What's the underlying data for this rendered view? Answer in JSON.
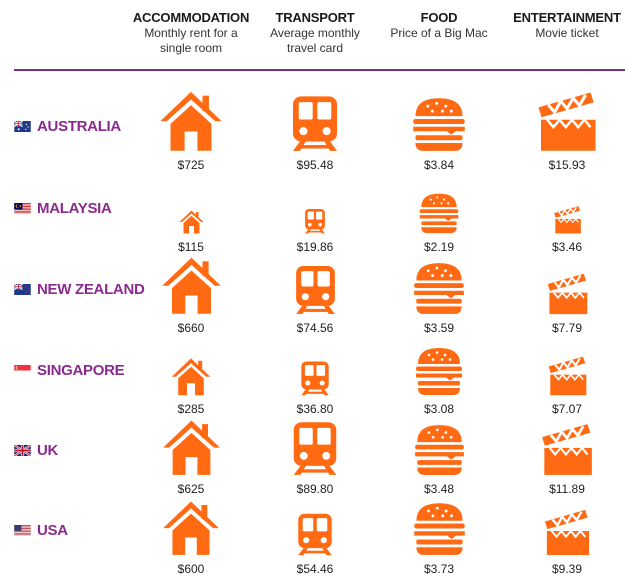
{
  "columns": [
    {
      "title": "ACCOMMODATION",
      "subtitle_lines": [
        "Monthly rent for a",
        "single room"
      ]
    },
    {
      "title": "TRANSPORT",
      "subtitle_lines": [
        "Average monthly",
        "travel card"
      ]
    },
    {
      "title": "FOOD",
      "subtitle_lines": [
        "Price of a Big Mac"
      ]
    },
    {
      "title": "ENTERTAINMENT",
      "subtitle_lines": [
        "Movie ticket"
      ]
    }
  ],
  "colors": {
    "icon": "#ff6a13",
    "country": "#8b2a8e",
    "divider": "#7b2f8a"
  },
  "chart_data": {
    "type": "table",
    "categories": [
      "ACCOMMODATION",
      "TRANSPORT",
      "FOOD",
      "ENTERTAINMENT"
    ],
    "series": [
      {
        "name": "AUSTRALIA",
        "flag": "australia",
        "values": [
          725,
          95.48,
          3.84,
          15.93
        ],
        "labels": [
          "$725",
          "$95.48",
          "$3.84",
          "$15.93"
        ]
      },
      {
        "name": "MALAYSIA",
        "flag": "malaysia",
        "values": [
          115,
          19.86,
          2.19,
          3.46
        ],
        "labels": [
          "$115",
          "$19.86",
          "$2.19",
          "$3.46"
        ]
      },
      {
        "name": "NEW ZEALAND",
        "flag": "new-zealand",
        "values": [
          660,
          74.56,
          3.59,
          7.79
        ],
        "labels": [
          "$660",
          "$74.56",
          "$3.59",
          "$7.79"
        ]
      },
      {
        "name": "SINGAPORE",
        "flag": "singapore",
        "values": [
          285,
          36.8,
          3.08,
          7.07
        ],
        "labels": [
          "$285",
          "$36.80",
          "$3.08",
          "$7.07"
        ]
      },
      {
        "name": "UK",
        "flag": "uk",
        "values": [
          625,
          89.8,
          3.48,
          11.89
        ],
        "labels": [
          "$625",
          "$89.80",
          "$3.48",
          "$11.89"
        ]
      },
      {
        "name": "USA",
        "flag": "usa",
        "values": [
          600,
          54.46,
          3.73,
          9.39
        ],
        "labels": [
          "$600",
          "$54.46",
          "$3.73",
          "$9.39"
        ]
      }
    ],
    "icons": [
      "house-icon",
      "train-icon",
      "burger-icon",
      "clapperboard-icon"
    ]
  }
}
